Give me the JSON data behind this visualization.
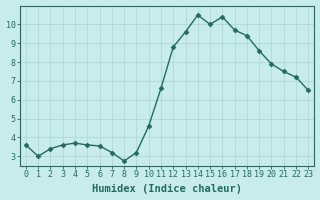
{
  "x": [
    0,
    1,
    2,
    3,
    4,
    5,
    6,
    7,
    8,
    9,
    10,
    11,
    12,
    13,
    14,
    15,
    16,
    17,
    18,
    19,
    20,
    21,
    22,
    23
  ],
  "y": [
    3.6,
    3.0,
    3.4,
    3.6,
    3.7,
    3.6,
    3.55,
    3.2,
    2.75,
    3.2,
    4.6,
    6.6,
    8.8,
    9.6,
    10.5,
    10.0,
    10.4,
    9.7,
    9.4,
    8.6,
    7.9,
    7.5,
    7.2,
    6.5
  ],
  "line_color": "#236b5e",
  "marker": "D",
  "marker_size": 2.5,
  "bg_color": "#c8ecec",
  "grid_color": "#b0d8d8",
  "xlabel": "Humidex (Indice chaleur)",
  "xlabel_fontsize": 7.5,
  "ylim": [
    2.5,
    11.0
  ],
  "xlim": [
    -0.5,
    23.5
  ],
  "yticks": [
    3,
    4,
    5,
    6,
    7,
    8,
    9,
    10
  ],
  "xticks": [
    0,
    1,
    2,
    3,
    4,
    5,
    6,
    7,
    8,
    9,
    10,
    11,
    12,
    13,
    14,
    15,
    16,
    17,
    18,
    19,
    20,
    21,
    22,
    23
  ],
  "tick_fontsize": 6,
  "linewidth": 1.0
}
